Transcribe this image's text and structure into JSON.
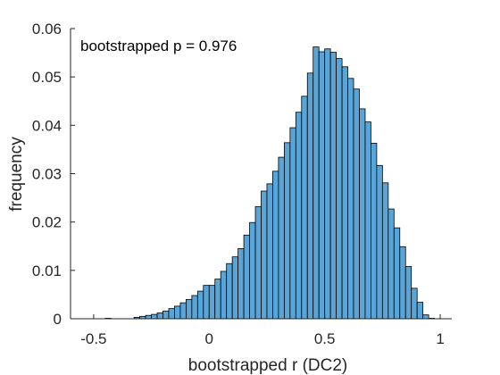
{
  "chart_data": {
    "type": "bar",
    "title": "",
    "xlabel": "bootstrapped r (DC2)",
    "ylabel": "frequency",
    "annotation": "bootstrapped p = 0.976",
    "xlim": [
      -0.6,
      1.05
    ],
    "ylim": [
      0,
      0.06
    ],
    "xticks": [
      -0.5,
      0,
      0.5,
      1
    ],
    "xtick_labels": [
      "-0.5",
      "0",
      "0.5",
      "1"
    ],
    "yticks": [
      0,
      0.01,
      0.02,
      0.03,
      0.04,
      0.05,
      0.06
    ],
    "ytick_labels": [
      "0",
      "0.01",
      "0.02",
      "0.03",
      "0.04",
      "0.05",
      "0.06"
    ],
    "grid": false,
    "bin_width": 0.025,
    "bins": [
      [
        -0.45,
        0.0001
      ],
      [
        -0.325,
        0.0003
      ],
      [
        -0.3,
        0.0005
      ],
      [
        -0.275,
        0.0007
      ],
      [
        -0.25,
        0.0009
      ],
      [
        -0.225,
        0.0012
      ],
      [
        -0.2,
        0.0016
      ],
      [
        -0.175,
        0.0021
      ],
      [
        -0.15,
        0.0026
      ],
      [
        -0.125,
        0.0033
      ],
      [
        -0.1,
        0.004
      ],
      [
        -0.075,
        0.0048
      ],
      [
        -0.05,
        0.0057
      ],
      [
        -0.025,
        0.0069
      ],
      [
        0,
        0.0069
      ],
      [
        0.025,
        0.0082
      ],
      [
        0.05,
        0.0098
      ],
      [
        0.075,
        0.0114
      ],
      [
        0.1,
        0.0128
      ],
      [
        0.125,
        0.0145
      ],
      [
        0.15,
        0.0173
      ],
      [
        0.175,
        0.0199
      ],
      [
        0.2,
        0.0232
      ],
      [
        0.225,
        0.0264
      ],
      [
        0.25,
        0.0279
      ],
      [
        0.275,
        0.0305
      ],
      [
        0.3,
        0.0334
      ],
      [
        0.325,
        0.0364
      ],
      [
        0.35,
        0.0395
      ],
      [
        0.375,
        0.0427
      ],
      [
        0.4,
        0.046
      ],
      [
        0.425,
        0.0508
      ],
      [
        0.45,
        0.0562
      ],
      [
        0.475,
        0.0552
      ],
      [
        0.5,
        0.0558
      ],
      [
        0.525,
        0.0551
      ],
      [
        0.55,
        0.0538
      ],
      [
        0.575,
        0.0521
      ],
      [
        0.6,
        0.0497
      ],
      [
        0.625,
        0.0475
      ],
      [
        0.65,
        0.0434
      ],
      [
        0.675,
        0.0407
      ],
      [
        0.7,
        0.0363
      ],
      [
        0.725,
        0.0317
      ],
      [
        0.75,
        0.0281
      ],
      [
        0.775,
        0.0227
      ],
      [
        0.8,
        0.0188
      ],
      [
        0.825,
        0.0149
      ],
      [
        0.85,
        0.0108
      ],
      [
        0.875,
        0.0063
      ],
      [
        0.9,
        0.0034
      ],
      [
        0.925,
        0.0008
      ],
      [
        0.95,
        0.0001
      ]
    ],
    "bar_color": "#5aa5d8",
    "edge_color": "#000000",
    "axis_color": "#262626"
  }
}
